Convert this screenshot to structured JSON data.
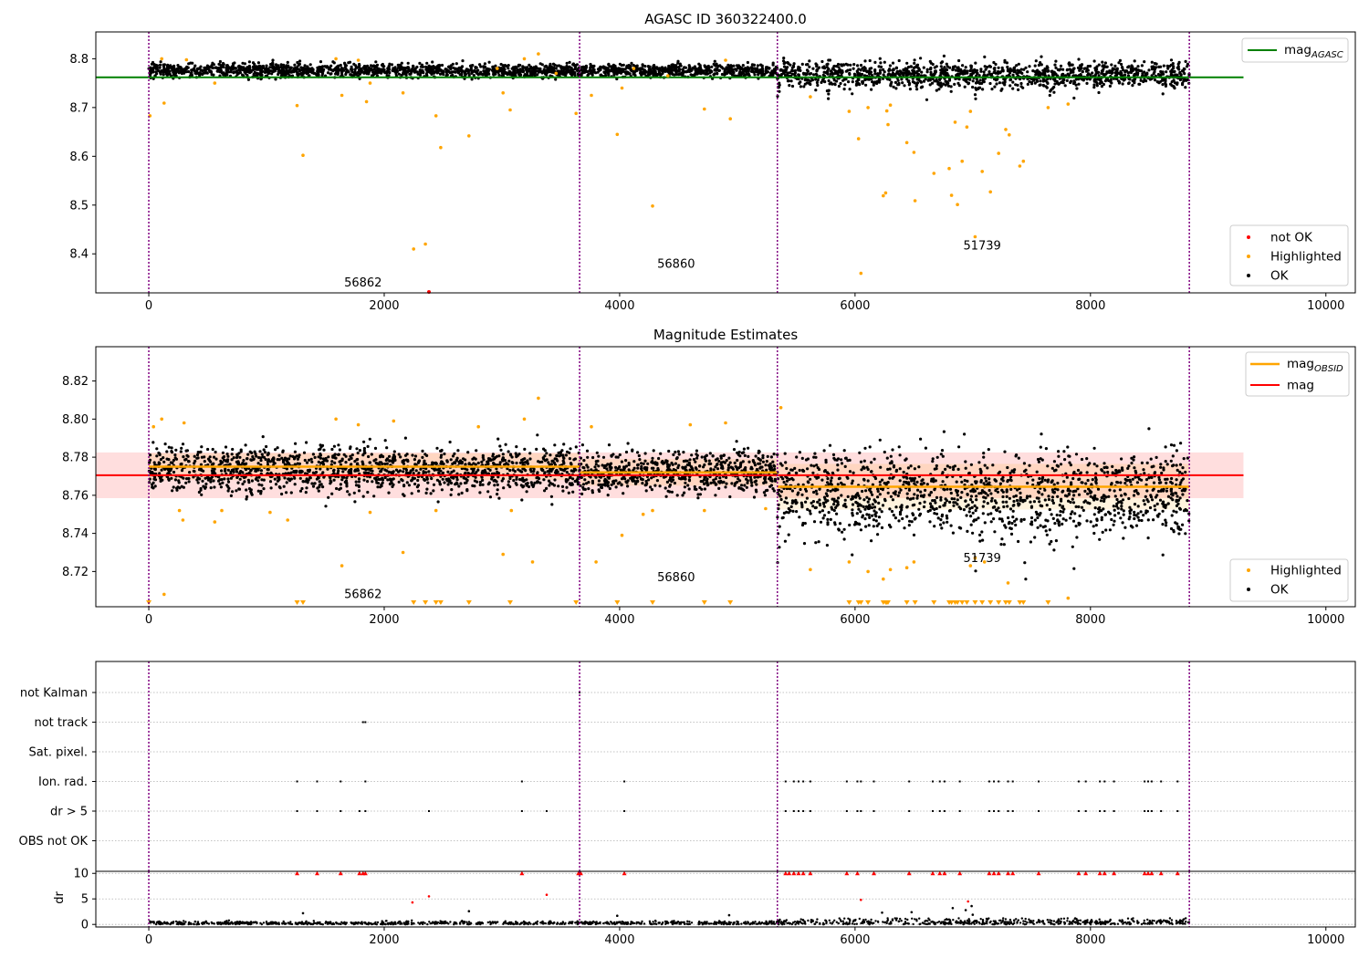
{
  "chart_data": [
    {
      "type": "scatter",
      "title": "AGASC ID 360322400.0",
      "xlim": [
        -450,
        10250
      ],
      "ylim": [
        8.32,
        8.855
      ],
      "xticks": [
        0,
        2000,
        4000,
        6000,
        8000,
        10000
      ],
      "yticks": [
        8.4,
        8.5,
        8.6,
        8.7,
        8.8
      ],
      "ytick_labels": [
        "8.4",
        "8.5",
        "8.6",
        "8.7",
        "8.8"
      ],
      "obs_boundaries": [
        0,
        3660,
        5340,
        8840
      ],
      "obsids": [
        {
          "label": "56862",
          "x": 1820,
          "y": 8.333
        },
        {
          "label": "56860",
          "x": 4480,
          "y": 8.371
        },
        {
          "label": "51739",
          "x": 7080,
          "y": 8.409
        }
      ],
      "mag_agasc": {
        "value": 8.762,
        "x_range": [
          -450,
          9300
        ]
      },
      "ok_bands": [
        {
          "x": [
            0,
            3660
          ],
          "center": 8.776,
          "spread": 0.013
        },
        {
          "x": [
            3660,
            5340
          ],
          "center": 8.776,
          "spread": 0.012
        },
        {
          "x": [
            5340,
            8840
          ],
          "center": 8.768,
          "spread": 0.024
        }
      ],
      "highlighted": [
        [
          10,
          8.683
        ],
        [
          130,
          8.709
        ],
        [
          1260,
          8.704
        ],
        [
          1310,
          8.602
        ],
        [
          1640,
          8.725
        ],
        [
          1850,
          8.712
        ],
        [
          2160,
          8.73
        ],
        [
          2250,
          8.41
        ],
        [
          2350,
          8.42
        ],
        [
          2440,
          8.683
        ],
        [
          2480,
          8.618
        ],
        [
          2720,
          8.642
        ],
        [
          3010,
          8.73
        ],
        [
          3070,
          8.695
        ],
        [
          3630,
          8.688
        ],
        [
          3760,
          8.725
        ],
        [
          3980,
          8.645
        ],
        [
          4020,
          8.74
        ],
        [
          4280,
          8.498
        ],
        [
          4720,
          8.697
        ],
        [
          4940,
          8.677
        ],
        [
          5620,
          8.722
        ],
        [
          5950,
          8.692
        ],
        [
          6030,
          8.636
        ],
        [
          6050,
          8.36
        ],
        [
          6110,
          8.7
        ],
        [
          6240,
          8.519
        ],
        [
          6260,
          8.525
        ],
        [
          6270,
          8.693
        ],
        [
          6280,
          8.665
        ],
        [
          6300,
          8.705
        ],
        [
          6440,
          8.628
        ],
        [
          6500,
          8.608
        ],
        [
          6510,
          8.509
        ],
        [
          6670,
          8.565
        ],
        [
          6800,
          8.575
        ],
        [
          6820,
          8.52
        ],
        [
          6850,
          8.67
        ],
        [
          6870,
          8.501
        ],
        [
          6910,
          8.59
        ],
        [
          6950,
          8.66
        ],
        [
          6980,
          8.692
        ],
        [
          7020,
          8.435
        ],
        [
          7080,
          8.569
        ],
        [
          7150,
          8.527
        ],
        [
          7220,
          8.606
        ],
        [
          7280,
          8.655
        ],
        [
          7310,
          8.644
        ],
        [
          7400,
          8.58
        ],
        [
          7430,
          8.59
        ],
        [
          7640,
          8.7
        ],
        [
          7810,
          8.707
        ],
        [
          110,
          8.8
        ],
        [
          320,
          8.798
        ],
        [
          1590,
          8.8
        ],
        [
          1780,
          8.797
        ],
        [
          3310,
          8.81
        ],
        [
          3190,
          8.8
        ],
        [
          4900,
          8.797
        ],
        [
          4410,
          8.765
        ],
        [
          3460,
          8.77
        ],
        [
          2960,
          8.78
        ],
        [
          4120,
          8.78
        ],
        [
          560,
          8.75
        ],
        [
          1880,
          8.75
        ]
      ],
      "not_ok": [
        [
          2380,
          8.32
        ]
      ],
      "legend": {
        "line": "mag",
        "line_sub": "AGASC",
        "points": [
          "not OK",
          "Highlighted",
          "OK"
        ]
      },
      "colors": {
        "ok": "#000000",
        "highlighted": "#ffa500",
        "not_ok": "#ff0000",
        "agasc": "#008000",
        "boundary": "#800080"
      }
    },
    {
      "type": "scatter",
      "title": "Magnitude Estimates",
      "xlim": [
        -450,
        10250
      ],
      "ylim": [
        8.7015,
        8.838
      ],
      "xticks": [
        0,
        2000,
        4000,
        6000,
        8000,
        10000
      ],
      "yticks": [
        8.72,
        8.74,
        8.76,
        8.78,
        8.8,
        8.82
      ],
      "ytick_labels": [
        "8.72",
        "8.74",
        "8.76",
        "8.78",
        "8.80",
        "8.82"
      ],
      "obs_boundaries": [
        0,
        3660,
        5340,
        8840
      ],
      "obsids": [
        {
          "label": "56862",
          "x": 1820,
          "y": 8.706
        },
        {
          "label": "56860",
          "x": 4480,
          "y": 8.715
        },
        {
          "label": "51739",
          "x": 7080,
          "y": 8.725
        }
      ],
      "mag": {
        "value": 8.7705,
        "sigma": 0.012,
        "x_range": [
          -450,
          9300
        ]
      },
      "mag_obsid": [
        {
          "x": [
            0,
            3660
          ],
          "value": 8.775,
          "sigma": 0.007
        },
        {
          "x": [
            3660,
            5340
          ],
          "value": 8.772,
          "sigma": 0.007
        },
        {
          "x": [
            5340,
            8840
          ],
          "value": 8.7645,
          "sigma": 0.012
        }
      ],
      "ok_bands": [
        {
          "x": [
            0,
            3660
          ],
          "center": 8.7735,
          "spread": 0.011
        },
        {
          "x": [
            3660,
            5340
          ],
          "center": 8.7725,
          "spread": 0.01
        },
        {
          "x": [
            5340,
            8840
          ],
          "center": 8.762,
          "spread": 0.02
        }
      ],
      "highlighted": [
        [
          40,
          8.796
        ],
        [
          130,
          8.708
        ],
        [
          110,
          8.8
        ],
        [
          300,
          8.798
        ],
        [
          260,
          8.752
        ],
        [
          290,
          8.747
        ],
        [
          560,
          8.746
        ],
        [
          620,
          8.752
        ],
        [
          1030,
          8.751
        ],
        [
          1180,
          8.747
        ],
        [
          1590,
          8.8
        ],
        [
          1640,
          8.723
        ],
        [
          1780,
          8.797
        ],
        [
          1880,
          8.751
        ],
        [
          2160,
          8.73
        ],
        [
          2080,
          8.799
        ],
        [
          2440,
          8.752
        ],
        [
          2800,
          8.796
        ],
        [
          3010,
          8.729
        ],
        [
          3080,
          8.752
        ],
        [
          3190,
          8.8
        ],
        [
          3260,
          8.725
        ],
        [
          3310,
          8.811
        ],
        [
          3760,
          8.796
        ],
        [
          3800,
          8.725
        ],
        [
          4020,
          8.739
        ],
        [
          4200,
          8.75
        ],
        [
          4280,
          8.752
        ],
        [
          4720,
          8.752
        ],
        [
          4600,
          8.797
        ],
        [
          4900,
          8.798
        ],
        [
          5240,
          8.753
        ],
        [
          5370,
          8.806
        ],
        [
          5620,
          8.721
        ],
        [
          5950,
          8.725
        ],
        [
          6110,
          8.72
        ],
        [
          6240,
          8.716
        ],
        [
          6300,
          8.721
        ],
        [
          6440,
          8.722
        ],
        [
          6500,
          8.725
        ],
        [
          6980,
          8.723
        ],
        [
          7020,
          8.727
        ],
        [
          7100,
          8.725
        ],
        [
          7300,
          8.714
        ],
        [
          7810,
          8.706
        ]
      ],
      "clipped_low": [
        0,
        1260,
        1310,
        2250,
        2350,
        2440,
        2480,
        2720,
        3070,
        3630,
        3980,
        4280,
        4720,
        4940,
        5950,
        6030,
        6050,
        6110,
        6240,
        6260,
        6270,
        6280,
        6440,
        6510,
        6670,
        6800,
        6820,
        6850,
        6870,
        6910,
        6950,
        7020,
        7080,
        7150,
        7220,
        7280,
        7310,
        7400,
        7430,
        7640
      ],
      "legend": {
        "line1": "mag",
        "line1_sub": "OBSID",
        "line2": "mag",
        "points": [
          "Highlighted",
          "OK"
        ]
      },
      "colors": {
        "ok": "#000000",
        "highlighted": "#ffa500",
        "mag": "#ff0000",
        "mag_obsid": "#ffa500",
        "mag_band": "#ffdddd",
        "obsid_band": "#fff0cc"
      }
    },
    {
      "type": "scatter",
      "xlim": [
        -450,
        10250
      ],
      "xticks": [
        0,
        2000,
        4000,
        6000,
        8000,
        10000
      ],
      "obs_boundaries": [
        0,
        3660,
        5340,
        8840
      ],
      "flag_labels": [
        "not Kalman",
        "not track",
        "Sat. pixel.",
        "Ion. rad.",
        "dr > 5",
        "OBS not OK"
      ],
      "flags": {
        "not Kalman": [
          3660
        ],
        "not track": [
          1820,
          1840
        ],
        "Sat. pixel.": [],
        "Ion. rad.": [
          1260,
          1430,
          1630,
          1840,
          3170,
          4040,
          5410,
          5480,
          5520,
          5560,
          5620,
          5930,
          6020,
          6050,
          6160,
          6460,
          6660,
          6720,
          6760,
          6890,
          7140,
          7180,
          7220,
          7300,
          7340,
          7560,
          7900,
          7960,
          8080,
          8120,
          8200,
          8460,
          8490,
          8520,
          8600,
          8740
        ],
        "dr > 5": [
          1260,
          1430,
          1630,
          1790,
          1840,
          2380,
          3170,
          3380,
          4040,
          5410,
          5480,
          5520,
          5560,
          5620,
          5930,
          6020,
          6050,
          6160,
          6460,
          6660,
          6720,
          6760,
          6890,
          7140,
          7180,
          7220,
          7300,
          7340,
          7560,
          7900,
          7960,
          8080,
          8120,
          8200,
          8460,
          8490,
          8520,
          8600,
          8740
        ],
        "OBS not OK": []
      },
      "colors": {
        "flag": "#000000",
        "grid": "#b0b0b0"
      }
    },
    {
      "type": "scatter",
      "ylabel": "dr",
      "xlim": [
        -450,
        10250
      ],
      "ylim": [
        -0.5,
        10.4
      ],
      "xticks": [
        0,
        2000,
        4000,
        6000,
        8000,
        10000
      ],
      "yticks": [
        0,
        5,
        10
      ],
      "obs_boundaries": [
        0,
        3660,
        5340,
        8840
      ],
      "clipped_high": [
        1260,
        1430,
        1630,
        1790,
        1820,
        1840,
        3170,
        3650,
        3670,
        4040,
        5410,
        5440,
        5480,
        5520,
        5560,
        5620,
        5930,
        6020,
        6160,
        6460,
        6660,
        6720,
        6760,
        6890,
        7140,
        7180,
        7220,
        7300,
        7340,
        7560,
        7900,
        7960,
        8080,
        8120,
        8200,
        8460,
        8490,
        8520,
        8600,
        8740
      ],
      "outliers": [
        [
          1310,
          2.2
        ],
        [
          2240,
          4.3
        ],
        [
          2380,
          5.5
        ],
        [
          2720,
          2.6
        ],
        [
          3380,
          5.8
        ],
        [
          3980,
          1.7
        ],
        [
          4930,
          1.8
        ],
        [
          6050,
          4.8
        ],
        [
          6230,
          2.3
        ],
        [
          6480,
          2.4
        ],
        [
          6830,
          3.2
        ],
        [
          6960,
          4.5
        ],
        [
          6990,
          3.6
        ],
        [
          6940,
          2.8
        ],
        [
          7000,
          1.9
        ]
      ],
      "colors": {
        "ok": "#000000",
        "clipped": "#ff0000"
      }
    }
  ]
}
